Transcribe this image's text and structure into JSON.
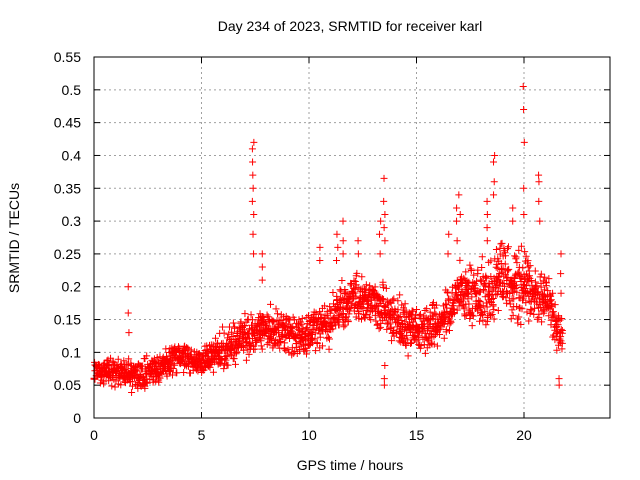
{
  "chart_data": {
    "type": "scatter",
    "title": "Day 234 of 2023, SRMTID for receiver karl",
    "xlabel": "GPS time / hours",
    "ylabel": "SRMTID / TECUs",
    "xlim": [
      0,
      24
    ],
    "ylim": [
      0,
      0.55
    ],
    "xticks": [
      0,
      5,
      10,
      15,
      20
    ],
    "xtick_labels": [
      "0",
      "5",
      "10",
      "15",
      "20"
    ],
    "yticks": [
      0,
      0.05,
      0.1,
      0.15,
      0.2,
      0.25,
      0.3,
      0.35,
      0.4,
      0.45,
      0.5,
      0.55
    ],
    "ytick_labels": [
      "0",
      "0.05",
      "0.1",
      "0.15",
      "0.2",
      "0.25",
      "0.3",
      "0.35",
      "0.4",
      "0.45",
      "0.5",
      "0.55"
    ],
    "grid": true,
    "legend": "none",
    "marker": "+",
    "series_color": "#ff0000",
    "trend": [
      {
        "x": 0.0,
        "y": 0.075,
        "spread": 0.03
      },
      {
        "x": 1.0,
        "y": 0.07,
        "spread": 0.03
      },
      {
        "x": 2.0,
        "y": 0.065,
        "spread": 0.03
      },
      {
        "x": 3.0,
        "y": 0.075,
        "spread": 0.03
      },
      {
        "x": 4.0,
        "y": 0.095,
        "spread": 0.03
      },
      {
        "x": 5.0,
        "y": 0.085,
        "spread": 0.03
      },
      {
        "x": 6.0,
        "y": 0.105,
        "spread": 0.04
      },
      {
        "x": 7.0,
        "y": 0.12,
        "spread": 0.045
      },
      {
        "x": 8.0,
        "y": 0.135,
        "spread": 0.045
      },
      {
        "x": 9.0,
        "y": 0.13,
        "spread": 0.045
      },
      {
        "x": 10.0,
        "y": 0.125,
        "spread": 0.05
      },
      {
        "x": 11.0,
        "y": 0.15,
        "spread": 0.055
      },
      {
        "x": 12.0,
        "y": 0.185,
        "spread": 0.05
      },
      {
        "x": 13.0,
        "y": 0.175,
        "spread": 0.05
      },
      {
        "x": 14.0,
        "y": 0.15,
        "spread": 0.05
      },
      {
        "x": 15.0,
        "y": 0.13,
        "spread": 0.05
      },
      {
        "x": 16.0,
        "y": 0.14,
        "spread": 0.05
      },
      {
        "x": 17.0,
        "y": 0.19,
        "spread": 0.06
      },
      {
        "x": 18.0,
        "y": 0.18,
        "spread": 0.07
      },
      {
        "x": 19.0,
        "y": 0.21,
        "spread": 0.07
      },
      {
        "x": 20.0,
        "y": 0.2,
        "spread": 0.075
      },
      {
        "x": 21.0,
        "y": 0.18,
        "spread": 0.06
      },
      {
        "x": 21.8,
        "y": 0.12,
        "spread": 0.04
      }
    ],
    "bursts": [
      {
        "x": 1.6,
        "y": [
          0.2,
          0.16,
          0.13
        ]
      },
      {
        "x": 7.4,
        "y": [
          0.42,
          0.41,
          0.39,
          0.37,
          0.35,
          0.33,
          0.31,
          0.28,
          0.25
        ]
      },
      {
        "x": 7.8,
        "y": [
          0.25,
          0.23,
          0.21
        ]
      },
      {
        "x": 10.5,
        "y": [
          0.26,
          0.24
        ]
      },
      {
        "x": 11.3,
        "y": [
          0.28,
          0.26,
          0.24
        ]
      },
      {
        "x": 11.6,
        "y": [
          0.3,
          0.27,
          0.25
        ]
      },
      {
        "x": 12.3,
        "y": [
          0.27,
          0.25
        ]
      },
      {
        "x": 13.3,
        "y": [
          0.3,
          0.28,
          0.25
        ]
      },
      {
        "x": 13.5,
        "y": [
          0.365,
          0.33,
          0.31,
          0.29,
          0.27
        ]
      },
      {
        "x": 13.5,
        "y": [
          0.05,
          0.06,
          0.08
        ]
      },
      {
        "x": 16.5,
        "y": [
          0.28,
          0.25
        ]
      },
      {
        "x": 16.9,
        "y": [
          0.32,
          0.3,
          0.27
        ]
      },
      {
        "x": 17.0,
        "y": [
          0.34,
          0.31
        ]
      },
      {
        "x": 18.3,
        "y": [
          0.33,
          0.31,
          0.29,
          0.27
        ]
      },
      {
        "x": 18.6,
        "y": [
          0.4,
          0.39,
          0.36,
          0.34
        ]
      },
      {
        "x": 19.5,
        "y": [
          0.32,
          0.3
        ]
      },
      {
        "x": 20.0,
        "y": [
          0.505,
          0.47,
          0.42,
          0.35,
          0.31
        ]
      },
      {
        "x": 20.7,
        "y": [
          0.37,
          0.36,
          0.33,
          0.3
        ]
      },
      {
        "x": 21.7,
        "y": [
          0.25,
          0.22,
          0.19
        ]
      },
      {
        "x": 21.6,
        "y": [
          0.05,
          0.06
        ]
      }
    ]
  }
}
